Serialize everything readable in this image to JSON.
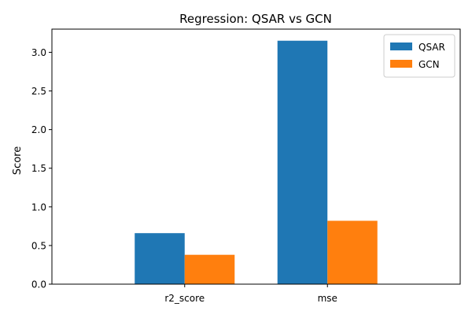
{
  "chart_data": {
    "type": "bar",
    "title": "Regression: QSAR vs GCN",
    "xlabel": "",
    "ylabel": "Score",
    "categories": [
      "r2_score",
      "mse"
    ],
    "series": [
      {
        "name": "QSAR",
        "values": [
          0.66,
          3.15
        ],
        "color": "#1f77b4"
      },
      {
        "name": "GCN",
        "values": [
          0.38,
          0.82
        ],
        "color": "#ff7f0e"
      }
    ],
    "ylim": [
      0,
      3.3
    ],
    "yticks": [
      "0.0",
      "0.5",
      "1.0",
      "1.5",
      "2.0",
      "2.5",
      "3.0"
    ],
    "legend_position": "top-right",
    "grid": false
  }
}
